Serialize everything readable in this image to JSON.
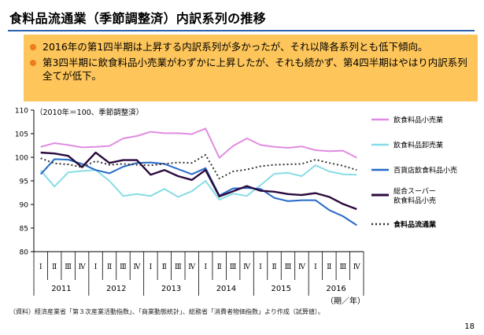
{
  "slide": {
    "title": "食料品流通業（季節調整済）内訳系列の推移",
    "bullets": [
      "2016年の第1四半期は上昇する内訳系列が多かったが、それ以降各系列とも低下傾向。",
      "第3四半期に飲食料品小売業がわずかに上昇したが、それも続かず、第4四半期はやはり内訳系列全てが低下。"
    ],
    "footnote": "（資料）経済産業省「第３次産業活動指数」、「商業動態統計」、総務省「消費者物価指数」より作成（試算値）。",
    "page_number": "18"
  },
  "colors": {
    "title_rule": "#2a62b0",
    "summary_bg": "#fdc55a",
    "bullet": "#f07b1d"
  },
  "chart_data": {
    "type": "line",
    "annotation": "（2010年＝100、季節調整済）",
    "x_unit_label": "（期／年）",
    "quarters": [
      "Ⅰ",
      "Ⅱ",
      "Ⅲ",
      "Ⅳ",
      "Ⅰ",
      "Ⅱ",
      "Ⅲ",
      "Ⅳ",
      "Ⅰ",
      "Ⅱ",
      "Ⅲ",
      "Ⅳ",
      "Ⅰ",
      "Ⅱ",
      "Ⅲ",
      "Ⅳ",
      "Ⅰ",
      "Ⅱ",
      "Ⅲ",
      "Ⅳ",
      "Ⅰ",
      "Ⅱ",
      "Ⅲ",
      "Ⅳ"
    ],
    "years": [
      "2011",
      "2012",
      "2013",
      "2014",
      "2015",
      "2016"
    ],
    "ylim": [
      80,
      110
    ],
    "yticks": [
      80,
      85,
      90,
      95,
      100,
      105,
      110
    ],
    "grid": false,
    "legend_position": "right",
    "series": [
      {
        "name": "飲食料品小売業",
        "color": "#e08ce0",
        "dash": "",
        "width": 2,
        "values": [
          102.2,
          103.0,
          102.6,
          102.1,
          102.2,
          102.4,
          104.0,
          104.5,
          105.4,
          105.1,
          105.1,
          104.9,
          106.1,
          99.9,
          102.4,
          104.0,
          102.6,
          102.2,
          102.0,
          102.3,
          101.5,
          101.3,
          101.4,
          99.9
        ]
      },
      {
        "name": "飲食料品卸売業",
        "color": "#88dce6",
        "dash": "",
        "width": 2,
        "values": [
          97.2,
          93.8,
          96.8,
          97.1,
          97.3,
          95.0,
          91.8,
          92.2,
          91.8,
          93.3,
          91.6,
          92.8,
          95.0,
          91.0,
          92.3,
          91.8,
          94.1,
          96.5,
          96.7,
          96.0,
          98.3,
          97.0,
          96.4,
          96.3
        ]
      },
      {
        "name": "百貨店飲食料品小売",
        "color": "#2468c8",
        "dash": "",
        "width": 2,
        "values": [
          96.4,
          99.6,
          99.5,
          98.6,
          97.3,
          96.6,
          98.0,
          98.8,
          98.9,
          98.6,
          97.5,
          96.4,
          97.7,
          91.9,
          93.4,
          93.5,
          93.3,
          91.4,
          90.7,
          90.9,
          90.9,
          88.8,
          87.5,
          85.6
        ]
      },
      {
        "name": "総合スーパー飲食料品小売",
        "color": "#2b0a3d",
        "dash": "",
        "width": 2.4,
        "values": [
          101.0,
          100.8,
          100.3,
          97.9,
          101.0,
          98.8,
          99.4,
          99.4,
          96.3,
          97.3,
          96.0,
          95.2,
          97.3,
          91.7,
          92.8,
          93.9,
          92.9,
          92.7,
          92.2,
          92.0,
          92.4,
          91.6,
          90.1,
          89.0
        ]
      },
      {
        "name": "食料品流通業",
        "color": "#333333",
        "dash": "2,3",
        "width": 2,
        "values": [
          99.8,
          98.7,
          98.5,
          97.9,
          99.2,
          98.4,
          98.6,
          98.4,
          98.3,
          98.6,
          98.9,
          98.8,
          100.5,
          95.5,
          97.0,
          97.4,
          98.1,
          98.4,
          98.5,
          98.6,
          99.5,
          98.8,
          98.2,
          97.3
        ]
      }
    ]
  }
}
